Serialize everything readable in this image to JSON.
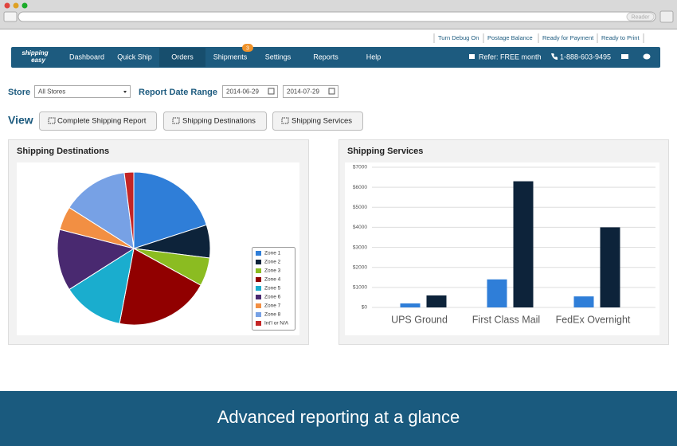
{
  "browser": {
    "reader": "Reader"
  },
  "top_links": [
    "Turn Debug On",
    "Postage Balance",
    "Ready for Payment",
    "Ready to Print"
  ],
  "nav": {
    "logo": [
      "shipping",
      "easy"
    ],
    "items": [
      "Dashboard",
      "Quick Ship",
      "Orders",
      "Shipments",
      "Settings",
      "Reports",
      "Help"
    ],
    "badge": 3,
    "refer": "Refer: FREE month",
    "phone": "1-888-603-9495"
  },
  "filters": {
    "store_label": "Store",
    "store_value": "All Stores",
    "date_label": "Report Date Range",
    "date_from": "2014-06-29",
    "date_to": "2014-07-29"
  },
  "view": {
    "label": "View",
    "buttons": [
      "Complete Shipping Report",
      "Shipping Destinations",
      "Shipping Services"
    ]
  },
  "chart_data": [
    {
      "type": "pie",
      "title": "Shipping Destinations",
      "categories": [
        "Zone 1",
        "Zone 2",
        "Zone 3",
        "Zone 4",
        "Zone 5",
        "Zone 6",
        "Zone 7",
        "Zone 8",
        "Int'l or N/A"
      ],
      "values": [
        20,
        7,
        6,
        20,
        13,
        13,
        5,
        14,
        2
      ],
      "colors": [
        "#2f7ed8",
        "#0d233a",
        "#8bbc21",
        "#910000",
        "#1aadce",
        "#492970",
        "#f28f43",
        "#77a1e5",
        "#c42525"
      ],
      "legend": "right"
    },
    {
      "type": "bar",
      "title": "Shipping Services",
      "categories": [
        "UPS Ground",
        "First Class Mail",
        "FedEx Overnight"
      ],
      "series": [
        {
          "color": "#2f7ed8",
          "values": [
            200,
            1400,
            550
          ]
        },
        {
          "color": "#0d233a",
          "values": [
            600,
            6300,
            4000
          ]
        }
      ],
      "ylim": [
        0,
        7000
      ],
      "yticks": [
        {
          "value": 0,
          "label": "$0"
        },
        {
          "value": 1000,
          "label": "$1000"
        },
        {
          "value": 2000,
          "label": "$2000"
        },
        {
          "value": 3000,
          "label": "$3000"
        },
        {
          "value": 4000,
          "label": "$4000"
        },
        {
          "value": 5000,
          "label": "$5000"
        },
        {
          "value": 6000,
          "label": "$6000"
        },
        {
          "value": 7000,
          "label": "$7000"
        }
      ],
      "grid": true
    }
  ],
  "banner": "Advanced reporting at a glance"
}
